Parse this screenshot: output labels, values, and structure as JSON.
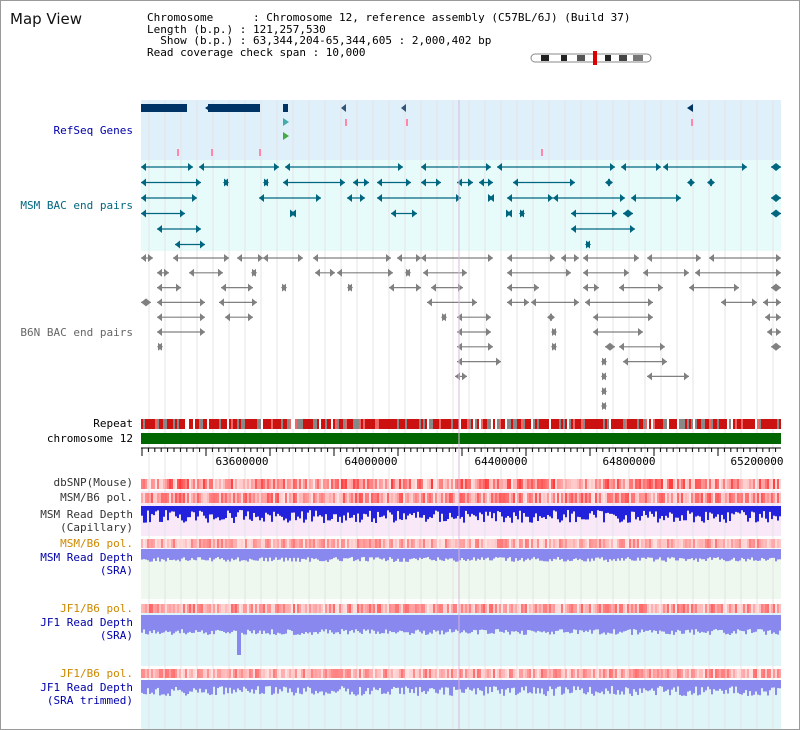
{
  "window": {
    "title": "Map View"
  },
  "info": {
    "chromosome": "Chromosome      : Chromosome 12, reference assembly (C57BL/6J) (Build 37)",
    "length": "Length (b.p.) : 121,257,530",
    "show": "  Show (b.p.) : 63,344,204-65,344,605 : 2,000,402 bp",
    "span": "Read coverage check span : 10,000"
  },
  "tracks": {
    "refseq": "RefSeq Genes",
    "msm_bac": "MSM BAC end pairs",
    "b6n_bac": "B6N BAC end pairs",
    "repeat": "Repeat",
    "chromosome": "chromosome 12",
    "dbsnp": "dbSNP(Mouse)",
    "msm_b6_pol": "MSM/B6 pol.",
    "msm_depth_cap_1": "MSM Read Depth",
    "msm_depth_cap_2": "(Capillary)",
    "msm_b6_pol_2": "MSM/B6 pol.",
    "msm_depth_sra_1": "MSM Read Depth",
    "msm_depth_sra_2": "(SRA)",
    "jf1_b6_pol": "JF1/B6 pol.",
    "jf1_depth_sra_1": "JF1 Read Depth",
    "jf1_depth_sra_2": "(SRA)",
    "jf1_b6_pol_2": "JF1/B6 pol.",
    "jf1_depth_trim_1": "JF1 Read Depth",
    "jf1_depth_trim_2": "(SRA trimmed)"
  },
  "axis": {
    "ticks": [
      "63600000",
      "64000000",
      "64400000",
      "64800000",
      "65200000"
    ]
  },
  "colors": {
    "gene_blue": "#003366",
    "msm_teal": "#006680",
    "b6n_gray": "#808080",
    "chrom_green": "#006600",
    "label_blue": "#0000aa",
    "label_orange": "#cc8800",
    "depth_blue": "#2222dd",
    "depth_light": "#8888ee"
  }
}
